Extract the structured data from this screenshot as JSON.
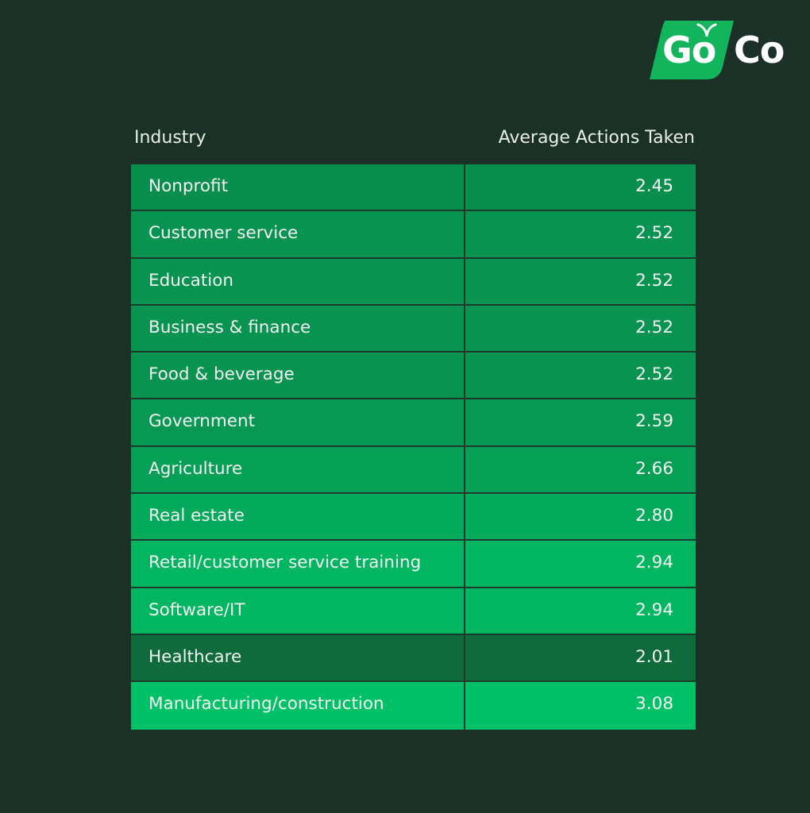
{
  "colors": {
    "background": "#1b3128",
    "cell_min": "#0f6a3c",
    "cell_max": "#00c167",
    "logo_badge": "#12b55c",
    "text": "#f2f7f3"
  },
  "logo": {
    "part1": "Go",
    "part2": "Co"
  },
  "chart_data": {
    "type": "table",
    "columns": [
      "Industry",
      "Average Actions Taken"
    ],
    "rows": [
      {
        "label": "Nonprofit",
        "value": 2.45,
        "display": "2.45"
      },
      {
        "label": "Customer service",
        "value": 2.52,
        "display": "2.52"
      },
      {
        "label": "Education",
        "value": 2.52,
        "display": "2.52"
      },
      {
        "label": "Business & finance",
        "value": 2.52,
        "display": "2.52"
      },
      {
        "label": "Food & beverage",
        "value": 2.52,
        "display": "2.52"
      },
      {
        "label": "Government",
        "value": 2.59,
        "display": "2.59"
      },
      {
        "label": "Agriculture",
        "value": 2.66,
        "display": "2.66"
      },
      {
        "label": "Real estate",
        "value": 2.8,
        "display": "2.80"
      },
      {
        "label": "Retail/customer service training",
        "value": 2.94,
        "display": "2.94"
      },
      {
        "label": "Software/IT",
        "value": 2.94,
        "display": "2.94"
      },
      {
        "label": "Healthcare",
        "value": 2.01,
        "display": "2.01"
      },
      {
        "label": "Manufacturing/construction",
        "value": 3.08,
        "display": "3.08"
      }
    ]
  }
}
